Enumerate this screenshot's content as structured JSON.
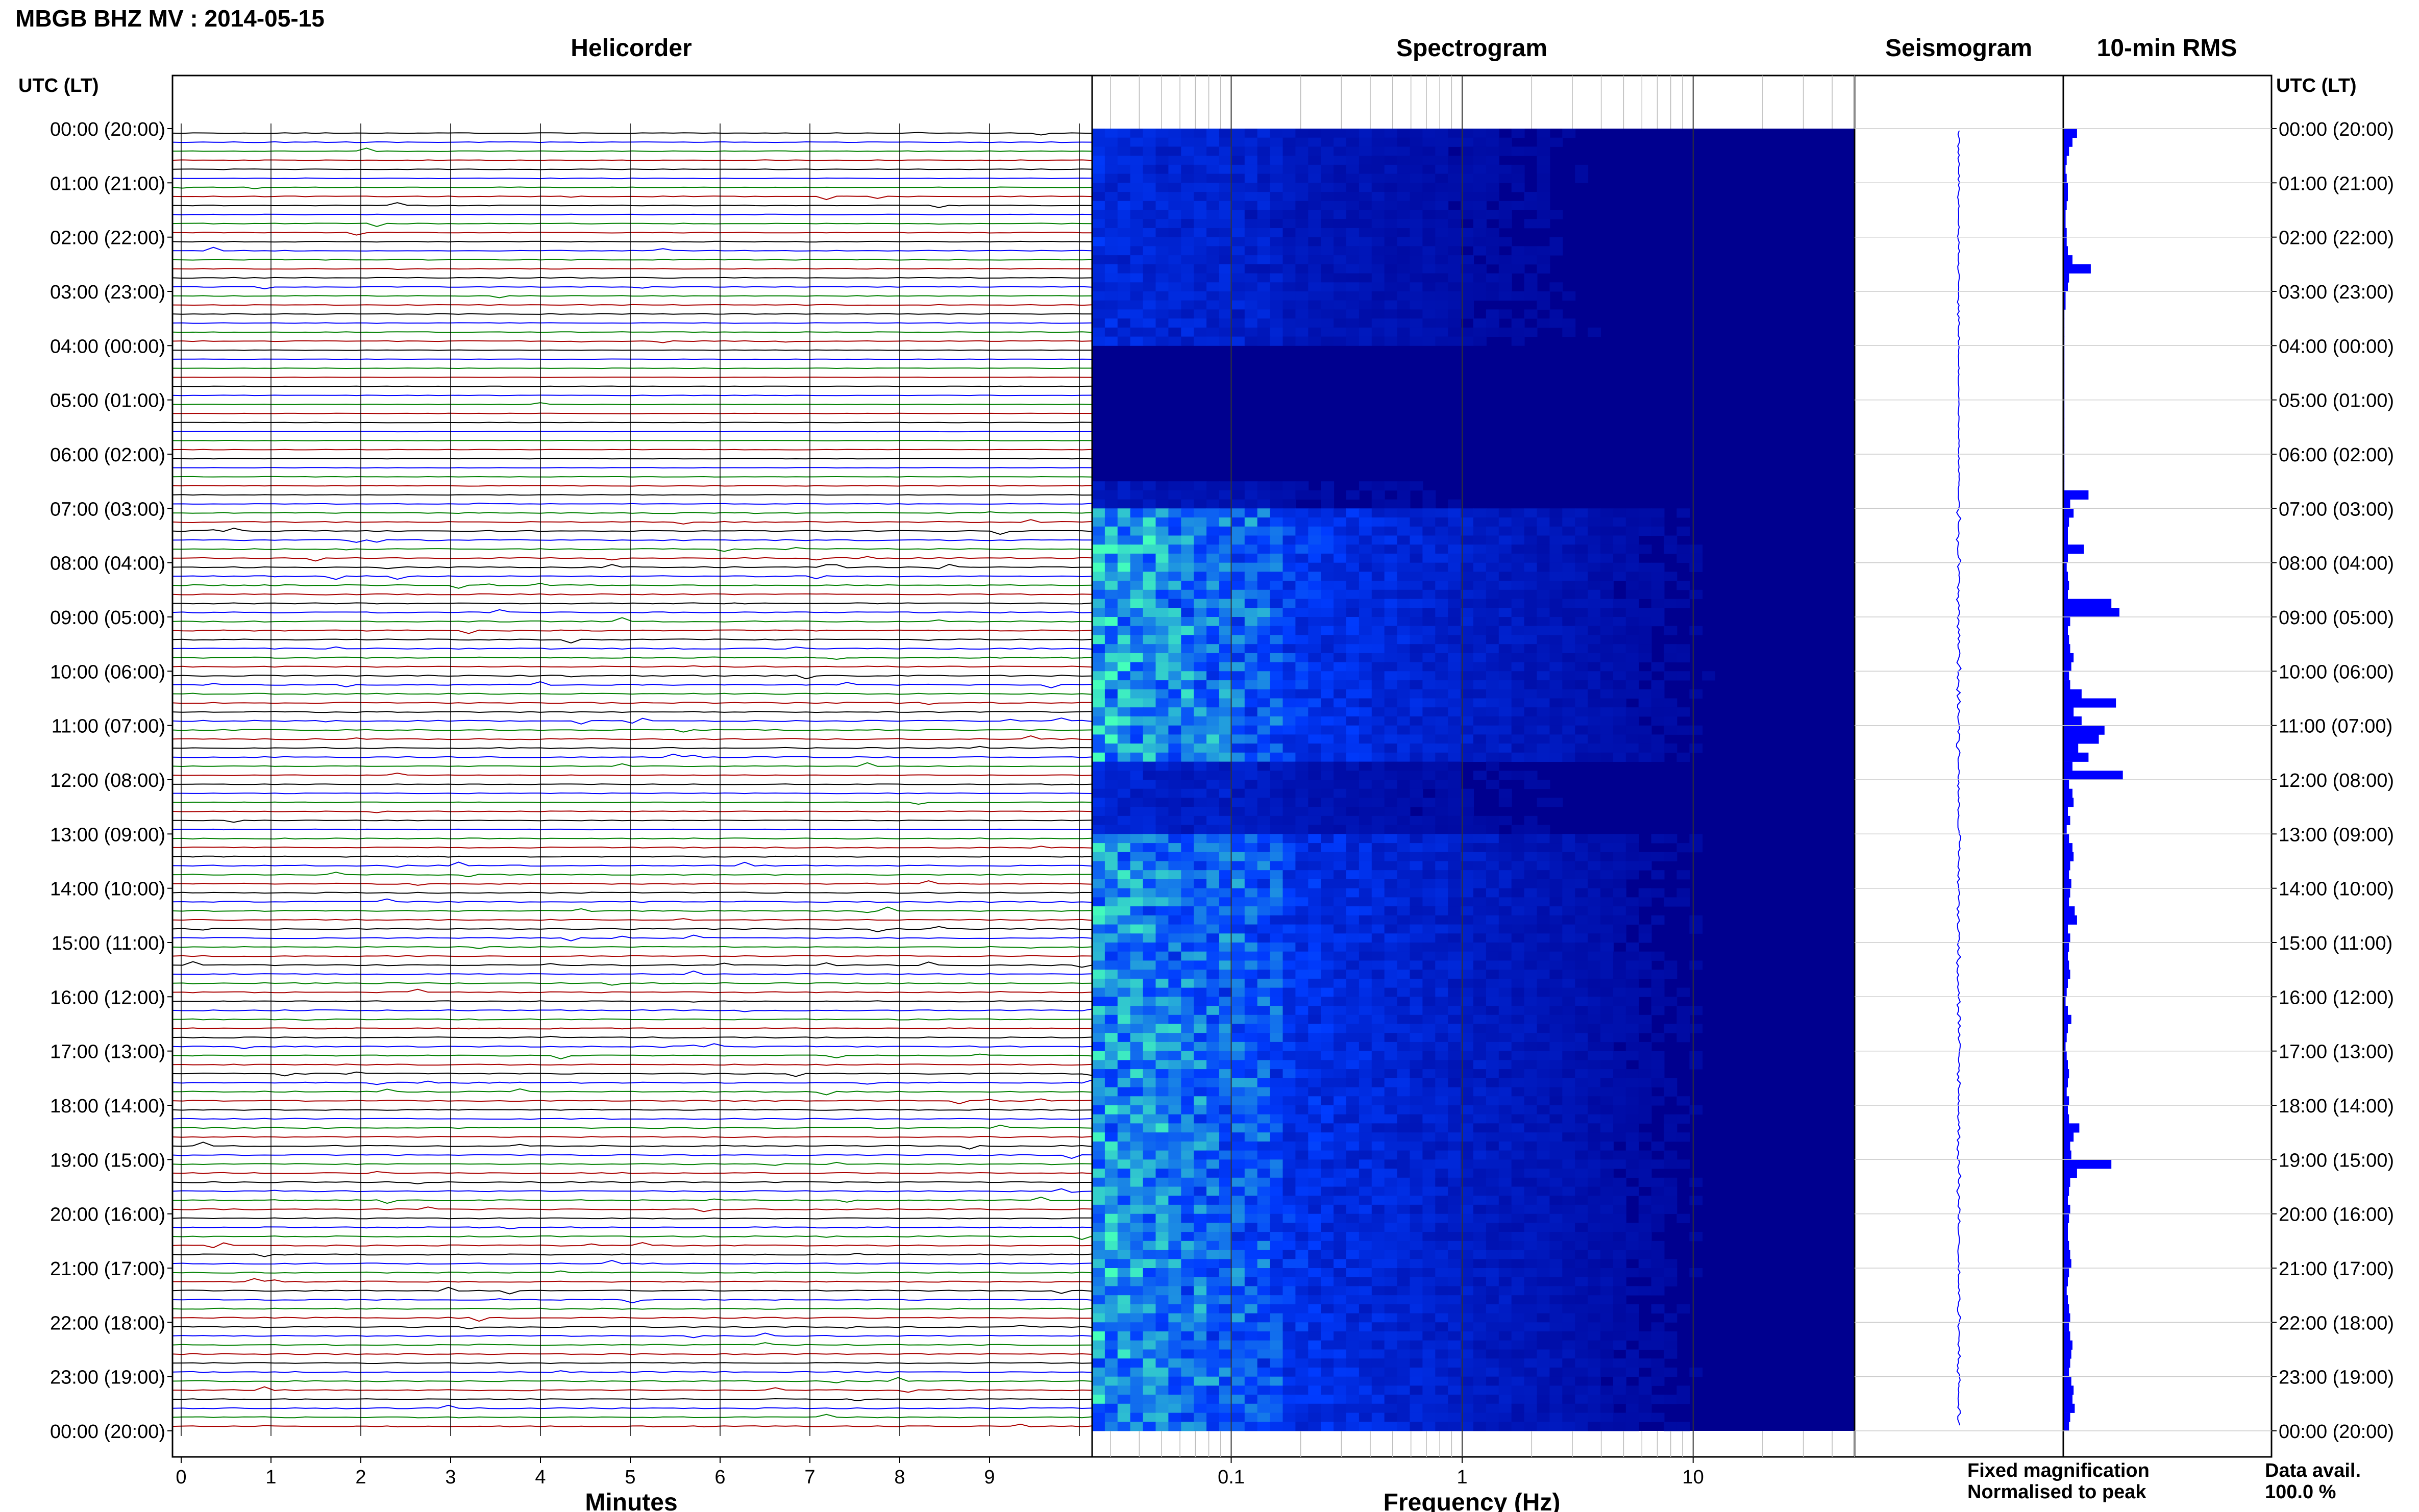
{
  "title": "MBGB BHZ MV : 2014-05-15",
  "panels": {
    "helicorder": "Helicorder",
    "spectrogram": "Spectrogram",
    "seismogram": "Seismogram",
    "rms": "10-min RMS"
  },
  "axis_header": "UTC (LT)",
  "time_labels": [
    "00:00 (20:00)",
    "01:00 (21:00)",
    "02:00 (22:00)",
    "03:00 (23:00)",
    "04:00 (00:00)",
    "05:00 (01:00)",
    "06:00 (02:00)",
    "07:00 (03:00)",
    "08:00 (04:00)",
    "09:00 (05:00)",
    "10:00 (06:00)",
    "11:00 (07:00)",
    "12:00 (08:00)",
    "13:00 (09:00)",
    "14:00 (10:00)",
    "15:00 (11:00)",
    "16:00 (12:00)",
    "17:00 (13:00)",
    "18:00 (14:00)",
    "19:00 (15:00)",
    "20:00 (16:00)",
    "21:00 (17:00)",
    "22:00 (18:00)",
    "23:00 (19:00)",
    "00:00 (20:00)"
  ],
  "minutes_ticks": [
    "0",
    "1",
    "2",
    "3",
    "4",
    "5",
    "6",
    "7",
    "8",
    "9"
  ],
  "xlabel_minutes": "Minutes",
  "freq_ticks": [
    "0.1",
    "1",
    "10"
  ],
  "xlabel_freq": "Frequency (Hz)",
  "legend": {
    "fixed": "Fixed magnification",
    "fixed_color": "#0000ff",
    "normalised": "Normalised to peak",
    "normalised_color": "#ff0000",
    "avail_label": "Data avail.",
    "avail_value": "100.0 %"
  },
  "colors": {
    "trace_cycle": [
      "#000000",
      "#0000ff",
      "#008000",
      "#aa0000"
    ],
    "spec_low": "#00008f",
    "spec_high": "#44ffbb",
    "rms_bar": "#0000ff"
  },
  "chart_data": [
    {
      "type": "line",
      "name": "helicorder",
      "x_range_minutes": [
        0,
        10
      ],
      "rows_per_hour": 6,
      "rows": 144,
      "description_values": "10-minute trace rows cycling black/blue/green/red"
    },
    {
      "type": "heatmap",
      "name": "spectrogram",
      "x_scale": "log",
      "x_range_hz": [
        0.025,
        50
      ],
      "rows": 144,
      "note": "quiet 04:00-06:30 UTC, elevated energy 07:00-11:30 and 13:00-24:00 UTC"
    },
    {
      "type": "bar",
      "name": "rms",
      "orientation": "horizontal",
      "values": [
        0.12,
        0.08,
        0.05,
        0.03,
        0.02,
        0.03,
        0.04,
        0.04,
        0.03,
        0.02,
        0.02,
        0.03,
        0.03,
        0.04,
        0.08,
        0.24,
        0.05,
        0.04,
        0.02,
        0.02,
        0.01,
        0.01,
        0.01,
        0.01,
        0.01,
        0.01,
        0.01,
        0.01,
        0.01,
        0.01,
        0.01,
        0.01,
        0.01,
        0.01,
        0.01,
        0.01,
        0.01,
        0.01,
        0.01,
        0.01,
        0.22,
        0.06,
        0.09,
        0.05,
        0.04,
        0.04,
        0.18,
        0.04,
        0.03,
        0.04,
        0.05,
        0.04,
        0.42,
        0.49,
        0.06,
        0.04,
        0.05,
        0.06,
        0.09,
        0.07,
        0.05,
        0.06,
        0.16,
        0.46,
        0.09,
        0.16,
        0.36,
        0.31,
        0.13,
        0.22,
        0.08,
        0.52,
        0.05,
        0.08,
        0.09,
        0.04,
        0.06,
        0.03,
        0.05,
        0.08,
        0.09,
        0.06,
        0.05,
        0.07,
        0.06,
        0.05,
        0.1,
        0.12,
        0.04,
        0.06,
        0.05,
        0.04,
        0.05,
        0.06,
        0.04,
        0.03,
        0.02,
        0.04,
        0.07,
        0.04,
        0.03,
        0.02,
        0.03,
        0.04,
        0.05,
        0.04,
        0.03,
        0.05,
        0.04,
        0.05,
        0.14,
        0.09,
        0.06,
        0.07,
        0.42,
        0.12,
        0.06,
        0.05,
        0.04,
        0.06,
        0.05,
        0.04,
        0.04,
        0.05,
        0.06,
        0.07,
        0.05,
        0.04,
        0.03,
        0.04,
        0.05,
        0.06,
        0.05,
        0.06,
        0.08,
        0.07,
        0.06,
        0.05,
        0.07,
        0.09,
        0.08,
        0.1,
        0.06,
        0.05
      ]
    }
  ]
}
